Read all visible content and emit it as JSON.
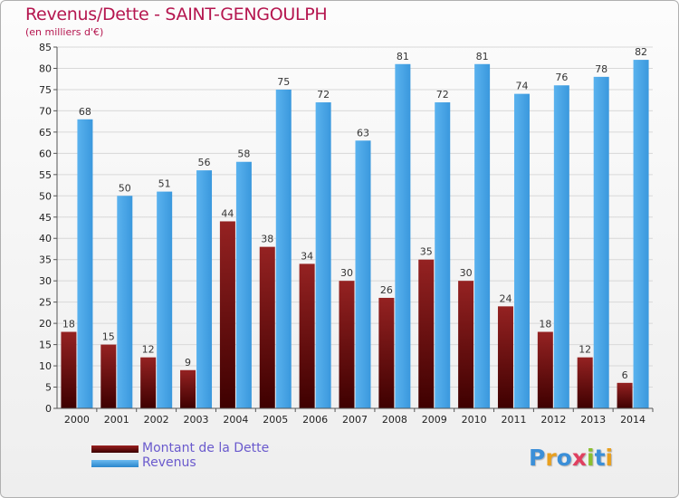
{
  "title": "Revenus/Dette - SAINT-GENGOULPH",
  "subtitle": "(en milliers d'€)",
  "logo": "Proxiti",
  "chart_data": {
    "type": "bar",
    "title": "Revenus/Dette - SAINT-GENGOULPH",
    "subtitle": "(en milliers d'€)",
    "categories": [
      "2000",
      "2001",
      "2002",
      "2003",
      "2004",
      "2005",
      "2006",
      "2007",
      "2008",
      "2009",
      "2010",
      "2011",
      "2012",
      "2013",
      "2014"
    ],
    "series": [
      {
        "name": "Montant de la Dette",
        "color": "#7a1010",
        "values": [
          18,
          15,
          12,
          9,
          44,
          38,
          34,
          30,
          26,
          35,
          30,
          24,
          18,
          12,
          6
        ]
      },
      {
        "name": "Revenus",
        "color": "#3f9fe3",
        "values": [
          68,
          50,
          51,
          56,
          58,
          75,
          72,
          63,
          81,
          72,
          81,
          74,
          76,
          78,
          82
        ]
      }
    ],
    "ylim": [
      0,
      85
    ],
    "yticks": [
      0,
      5,
      10,
      15,
      20,
      25,
      30,
      35,
      40,
      45,
      50,
      55,
      60,
      65,
      70,
      75,
      80,
      85
    ],
    "grid": true,
    "legend": "bottom-left"
  }
}
